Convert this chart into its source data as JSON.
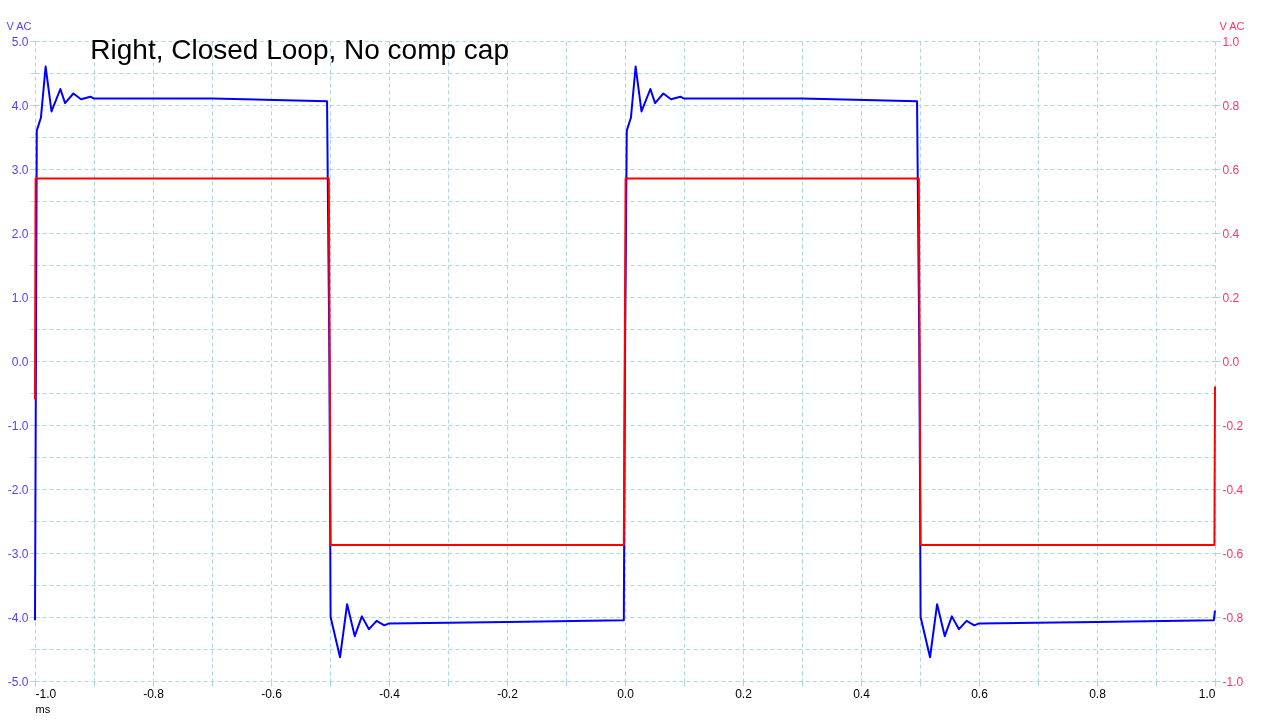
{
  "chart_data": {
    "type": "line",
    "title": "Right, Closed Loop, No comp cap",
    "xlabel": "ms",
    "ylabel": "V AC",
    "y2label": "V AC",
    "xlim": [
      -1.0,
      1.0
    ],
    "xticks": [
      {
        "value": -1.0,
        "label": "-1.0"
      },
      {
        "value": -0.9,
        "label": null
      },
      {
        "value": -0.8,
        "label": "-0.8"
      },
      {
        "value": -0.7,
        "label": null
      },
      {
        "value": -0.6,
        "label": "-0.6"
      },
      {
        "value": -0.5,
        "label": null
      },
      {
        "value": -0.4,
        "label": "-0.4"
      },
      {
        "value": -0.3,
        "label": null
      },
      {
        "value": -0.2,
        "label": "-0.2"
      },
      {
        "value": -0.1,
        "label": null
      },
      {
        "value": 0.0,
        "label": "0.0"
      },
      {
        "value": 0.1,
        "label": null
      },
      {
        "value": 0.2,
        "label": "0.2"
      },
      {
        "value": 0.3,
        "label": null
      },
      {
        "value": 0.4,
        "label": "0.4"
      },
      {
        "value": 0.5,
        "label": null
      },
      {
        "value": 0.6,
        "label": "0.6"
      },
      {
        "value": 0.7,
        "label": null
      },
      {
        "value": 0.8,
        "label": "0.8"
      },
      {
        "value": 0.9,
        "label": null
      },
      {
        "value": 1.0,
        "label": "1.0"
      }
    ],
    "ylim": [
      -5.0,
      5.0
    ],
    "yticks": [
      {
        "value": -5.0,
        "label": "-5.0"
      },
      {
        "value": -4.5,
        "label": null
      },
      {
        "value": -4.0,
        "label": "-4.0"
      },
      {
        "value": -3.5,
        "label": null
      },
      {
        "value": -3.0,
        "label": "-3.0"
      },
      {
        "value": -2.5,
        "label": null
      },
      {
        "value": -2.0,
        "label": "-2.0"
      },
      {
        "value": -1.5,
        "label": null
      },
      {
        "value": -1.0,
        "label": "-1.0"
      },
      {
        "value": -0.5,
        "label": null
      },
      {
        "value": 0.0,
        "label": "0.0"
      },
      {
        "value": 0.5,
        "label": null
      },
      {
        "value": 1.0,
        "label": "1.0"
      },
      {
        "value": 1.5,
        "label": null
      },
      {
        "value": 2.0,
        "label": "2.0"
      },
      {
        "value": 2.5,
        "label": null
      },
      {
        "value": 3.0,
        "label": "3.0"
      },
      {
        "value": 3.5,
        "label": null
      },
      {
        "value": 4.0,
        "label": "4.0"
      },
      {
        "value": 4.5,
        "label": null
      },
      {
        "value": 5.0,
        "label": "5.0"
      }
    ],
    "y2lim": [
      -1.0,
      1.0
    ],
    "y2ticks": [
      {
        "value": -1.0,
        "label": "-1.0"
      },
      {
        "value": -0.8,
        "label": "-0.8"
      },
      {
        "value": -0.6,
        "label": "-0.6"
      },
      {
        "value": -0.4,
        "label": "-0.4"
      },
      {
        "value": -0.2,
        "label": "-0.2"
      },
      {
        "value": 0.0,
        "label": "0.0"
      },
      {
        "value": 0.2,
        "label": "0.2"
      },
      {
        "value": 0.4,
        "label": "0.4"
      },
      {
        "value": 0.6,
        "label": "0.6"
      },
      {
        "value": 0.8,
        "label": "0.8"
      },
      {
        "value": 1.0,
        "label": "1.0"
      }
    ],
    "grid": true,
    "marker": "none",
    "line_style": "solid",
    "series": [
      {
        "color": "#ff0000",
        "axis": "y2",
        "x": [
          -1.0,
          -0.999,
          -0.502,
          -0.499,
          -0.002,
          0.001,
          0.498,
          0.501,
          0.999,
          1.0
        ],
        "values": [
          -0.12,
          0.57,
          0.57,
          -0.575,
          -0.575,
          0.57,
          0.57,
          -0.575,
          -0.575,
          -0.08
        ]
      },
      {
        "color": "#0000ff",
        "axis": "y",
        "x": [
          -1.0,
          -0.997,
          -0.99,
          -0.982,
          -0.972,
          -0.957,
          -0.949,
          -0.935,
          -0.922,
          -0.906,
          -0.9,
          -0.7,
          -0.505,
          -0.501,
          -0.499,
          -0.483,
          -0.471,
          -0.458,
          -0.446,
          -0.434,
          -0.421,
          -0.408,
          -0.4,
          -0.2,
          -0.002,
          0.0,
          0.003,
          0.01,
          0.018,
          0.028,
          0.043,
          0.051,
          0.065,
          0.078,
          0.094,
          0.1,
          0.3,
          0.495,
          0.499,
          0.501,
          0.517,
          0.529,
          0.542,
          0.554,
          0.566,
          0.579,
          0.592,
          0.6,
          0.8,
          0.998,
          1.0
        ],
        "values": [
          -4.05,
          3.6,
          3.8,
          4.6,
          3.9,
          4.25,
          4.03,
          4.18,
          4.09,
          4.13,
          4.1,
          4.1,
          4.06,
          0.0,
          -4.0,
          -4.63,
          -3.8,
          -4.3,
          -3.99,
          -4.19,
          -4.06,
          -4.13,
          -4.1,
          -4.08,
          -4.05,
          0.0,
          3.6,
          3.8,
          4.6,
          3.9,
          4.25,
          4.03,
          4.18,
          4.09,
          4.13,
          4.1,
          4.1,
          4.06,
          0.0,
          -4.0,
          -4.63,
          -3.8,
          -4.3,
          -3.99,
          -4.19,
          -4.06,
          -4.13,
          -4.1,
          -4.08,
          -4.05,
          -3.9
        ]
      }
    ]
  }
}
